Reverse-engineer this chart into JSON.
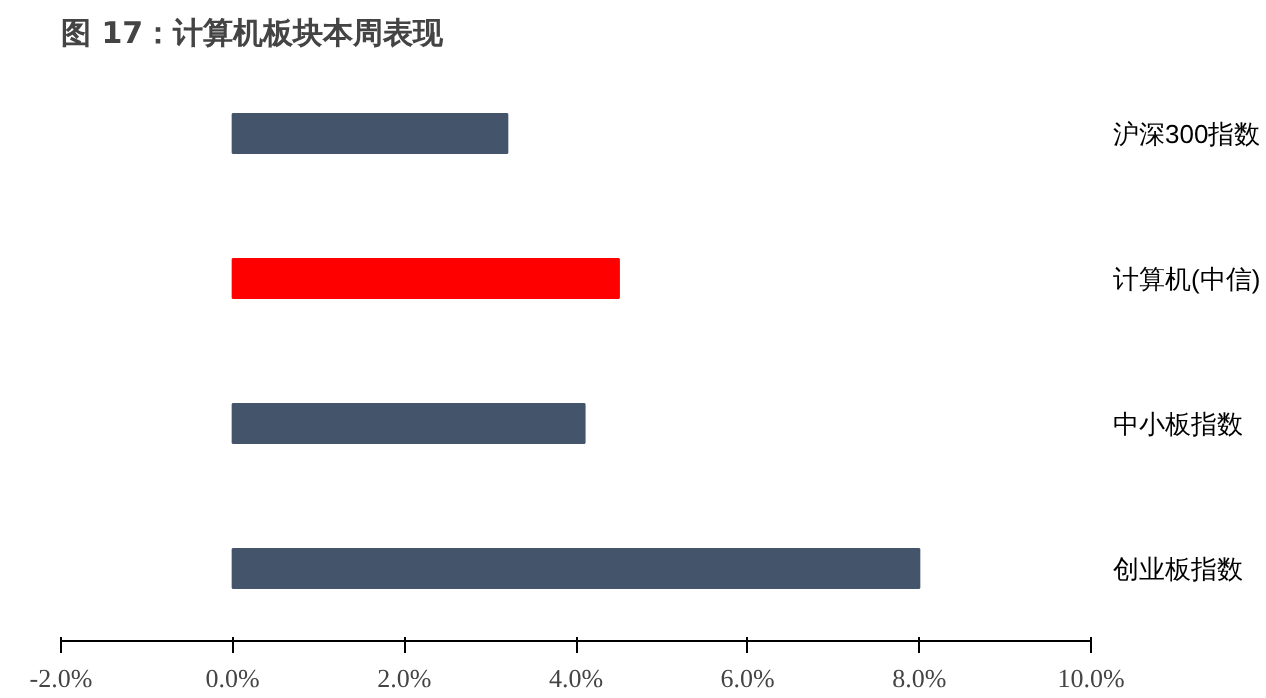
{
  "chart_data": {
    "type": "bar",
    "orientation": "horizontal",
    "title": "图 17：计算机板块本周表现",
    "categories": [
      "沪深300指数",
      "计算机(中信)",
      "中小板指数",
      "创业板指数"
    ],
    "values": [
      3.2,
      4.5,
      4.1,
      8.0
    ],
    "colors": [
      "#44546a",
      "#ff0000",
      "#44546a",
      "#44546a"
    ],
    "xlim": [
      -2,
      10
    ],
    "xticks": [
      {
        "value": -2,
        "label": "-2.0%"
      },
      {
        "value": 0,
        "label": "0.0%"
      },
      {
        "value": 2,
        "label": "2.0%"
      },
      {
        "value": 4,
        "label": "4.0%"
      },
      {
        "value": 6,
        "label": "6.0%"
      },
      {
        "value": 8,
        "label": "8.0%"
      },
      {
        "value": 10,
        "label": "10.0%"
      }
    ],
    "grid": false
  }
}
